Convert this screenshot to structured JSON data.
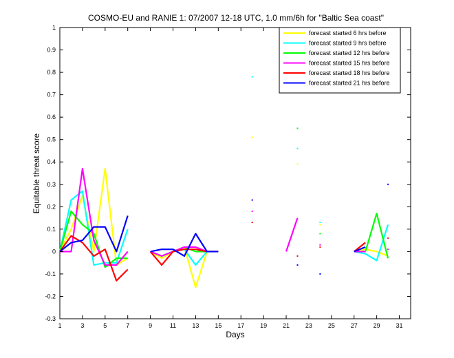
{
  "chart_data": {
    "type": "line",
    "title": "COSMO-EU and RANIE 1: 07/2007 12-18 UTC, 1.0 mm/6h for \"Baltic Sea coast\"",
    "xlabel": "Days",
    "ylabel": "Equitable threat score",
    "xlim": [
      1,
      32
    ],
    "ylim": [
      -0.3,
      1
    ],
    "xticks": [
      1,
      3,
      5,
      7,
      9,
      11,
      13,
      15,
      17,
      19,
      21,
      23,
      25,
      27,
      29,
      31
    ],
    "yticks": [
      -0.3,
      -0.2,
      -0.1,
      0,
      0.1,
      0.2,
      0.3,
      0.4,
      0.5,
      0.6,
      0.7,
      0.8,
      0.9,
      1
    ],
    "ytick_labels": [
      "-0.3",
      "-0.2",
      "-0.1",
      "0",
      "0.1",
      "0.2",
      "0.3",
      "0.4",
      "0.5",
      "0.6",
      "0.7",
      "0.8",
      "0.9",
      "1"
    ],
    "grid": false,
    "legend_position": "top-right",
    "x": [
      1,
      2,
      3,
      4,
      5,
      6,
      7,
      8,
      9,
      10,
      11,
      12,
      13,
      14,
      15,
      16,
      17,
      18,
      19,
      20,
      21,
      22,
      23,
      24,
      25,
      26,
      27,
      28,
      29,
      30,
      31
    ],
    "series": [
      {
        "name": "forecast started 6 hrs before",
        "color": "#ffff00",
        "values": [
          0,
          0.1,
          0.25,
          0,
          0.37,
          -0.06,
          -0.03,
          null,
          0,
          -0.03,
          0,
          0.02,
          -0.16,
          0,
          0,
          null,
          null,
          0.51,
          null,
          null,
          null,
          0.39,
          null,
          0.12,
          null,
          null,
          0,
          0.01,
          0,
          -0.02,
          null
        ]
      },
      {
        "name": "forecast started 9 hrs before",
        "color": "#00ffff",
        "values": [
          0,
          0.23,
          0.27,
          -0.06,
          -0.05,
          -0.05,
          0.1,
          null,
          0,
          -0.02,
          0,
          0.01,
          -0.06,
          0,
          0,
          null,
          null,
          0.78,
          null,
          null,
          null,
          0.46,
          null,
          0.13,
          null,
          null,
          0,
          -0.01,
          -0.04,
          0.12,
          null
        ]
      },
      {
        "name": "forecast started 12 hrs before",
        "color": "#00ff00",
        "values": [
          0,
          0.18,
          0.12,
          0.08,
          -0.07,
          -0.03,
          -0.03,
          null,
          0,
          -0.02,
          0,
          0.02,
          0,
          0,
          0,
          null,
          null,
          0.13,
          null,
          null,
          null,
          0.55,
          null,
          0.08,
          null,
          null,
          0,
          0,
          0.17,
          -0.03,
          null
        ]
      },
      {
        "name": "forecast started 15 hrs before",
        "color": "#ff00ff",
        "values": [
          0,
          0,
          0.37,
          0.05,
          -0.06,
          -0.06,
          0,
          null,
          0,
          -0.02,
          0,
          0.02,
          0.02,
          0,
          0,
          null,
          null,
          0.18,
          null,
          null,
          0,
          0.15,
          null,
          0.03,
          null,
          null,
          0,
          0,
          null,
          0.01,
          null
        ]
      },
      {
        "name": "forecast started 18 hrs before",
        "color": "#ff0000",
        "values": [
          0,
          0.07,
          0.04,
          -0.02,
          0.01,
          -0.13,
          -0.08,
          null,
          0,
          -0.06,
          0,
          0.01,
          0.01,
          0,
          0,
          null,
          null,
          0.13,
          null,
          null,
          null,
          -0.02,
          null,
          0.02,
          null,
          null,
          0,
          0.04,
          null,
          0.06,
          null
        ]
      },
      {
        "name": "forecast started 21 hrs before",
        "color": "#0000ff",
        "values": [
          0,
          0.04,
          0.05,
          0.11,
          0.11,
          0,
          0.16,
          null,
          0,
          0.01,
          0.01,
          -0.02,
          0.08,
          0,
          0,
          null,
          null,
          0.23,
          null,
          null,
          null,
          -0.06,
          null,
          -0.1,
          null,
          null,
          0,
          0.02,
          null,
          0.3,
          null
        ]
      }
    ]
  }
}
